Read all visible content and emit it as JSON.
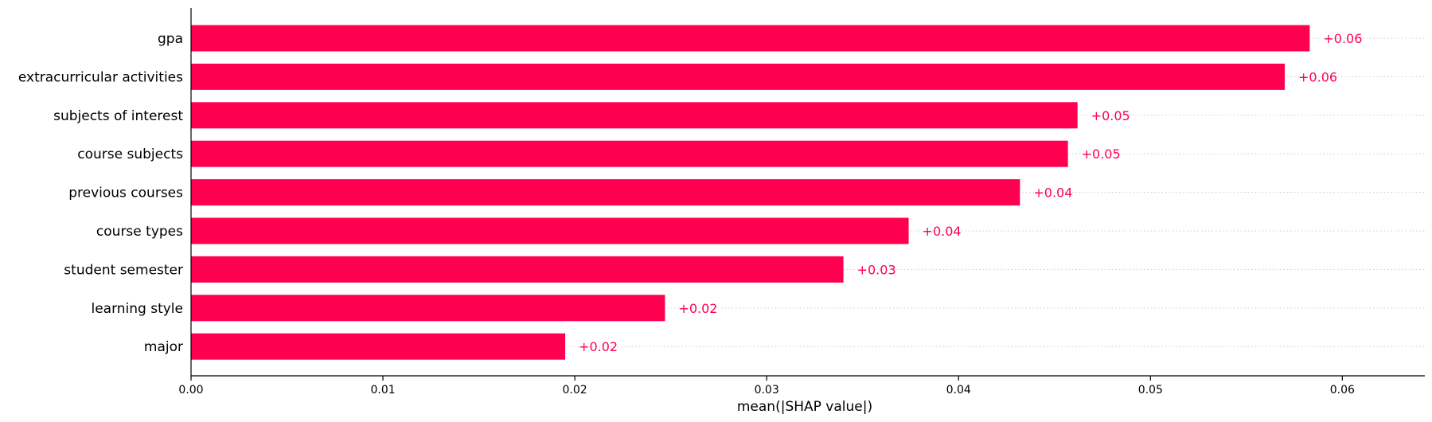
{
  "chart_data": {
    "type": "bar",
    "orientation": "horizontal",
    "categories": [
      "gpa",
      "extracurricular activities",
      "subjects of interest",
      "course subjects",
      "previous courses",
      "course types",
      "student semester",
      "learning style",
      "major"
    ],
    "values": [
      0.0583,
      0.057,
      0.0462,
      0.0457,
      0.0432,
      0.0374,
      0.034,
      0.0247,
      0.0195
    ],
    "value_labels": [
      "+0.06",
      "+0.06",
      "+0.05",
      "+0.05",
      "+0.04",
      "+0.04",
      "+0.03",
      "+0.02",
      "+0.02"
    ],
    "xlabel": "mean(|SHAP value|)",
    "ylabel": "",
    "xlim": [
      0,
      0.0643
    ],
    "xticks": [
      0,
      0.01,
      0.02,
      0.03,
      0.04,
      0.05,
      0.06
    ],
    "xtick_labels": [
      "0.00",
      "0.01",
      "0.02",
      "0.03",
      "0.04",
      "0.05",
      "0.06"
    ],
    "grid": "dotted horizontal guide lines per bar",
    "legend": "none",
    "colors": {
      "bar": "#ff0051",
      "value_label": "#ff0051",
      "guide": "#cccccc",
      "axis": "#000000"
    }
  }
}
